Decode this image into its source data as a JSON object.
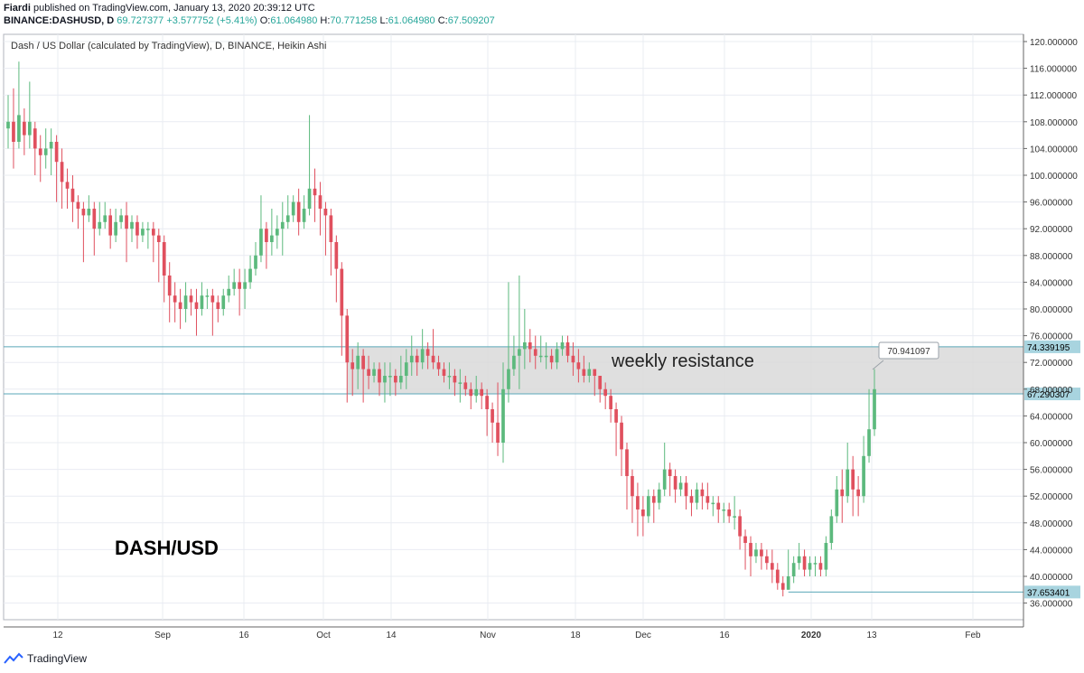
{
  "header": {
    "publisher": "Fiardi",
    "published_text": "published on TradingView.com, January 13, 2020 20:39:12 UTC",
    "symbol": "BINANCE:DASHUSD, D",
    "last": "69.727377",
    "change": "+3.577752 (+5.41%)",
    "o_label": "O:",
    "o": "61.064980",
    "h_label": "H:",
    "h": "70.771258",
    "l_label": "L:",
    "l": "61.064980",
    "c_label": "C:",
    "c": "67.509207"
  },
  "chart_title": "Dash / US Dollar (calculated by TradingView), D, BINANCE, Heikin Ashi",
  "watermark": "DASH/USD",
  "zone_label": "weekly resistance",
  "callout": "70.941097",
  "brand": "TradingView",
  "colors": {
    "up": "#26a69a",
    "up_candle": "#5cb97d",
    "down_candle": "#e0505e",
    "zone": "#d9d9d9",
    "line": "#5aa7b8",
    "label_bg": "#a8d4df"
  },
  "chart_data": {
    "type": "candlestick",
    "style": "Heikin Ashi",
    "ylim": [
      35,
      121
    ],
    "yticks": [
      "120.000000",
      "116.000000",
      "112.000000",
      "108.000000",
      "104.000000",
      "100.000000",
      "96.000000",
      "92.000000",
      "88.000000",
      "84.000000",
      "80.000000",
      "76.000000",
      "72.000000",
      "68.000000",
      "64.000000",
      "60.000000",
      "56.000000",
      "52.000000",
      "48.000000",
      "44.000000",
      "40.000000",
      "36.000000"
    ],
    "xticks": [
      "12",
      "Sep",
      "16",
      "Oct",
      "14",
      "Nov",
      "18",
      "Dec",
      "16",
      "2020",
      "13",
      "Feb"
    ],
    "price_labels": [
      {
        "value": 74.339195,
        "text": "74.339195"
      },
      {
        "value": 67.290307,
        "text": "67.290307"
      },
      {
        "value": 37.653401,
        "text": "37.653401"
      }
    ],
    "zone": {
      "low": 67.290307,
      "high": 74.339195
    },
    "callout_value": 70.941097,
    "candles": [
      [
        107,
        108,
        104,
        112
      ],
      [
        108,
        105,
        101,
        113
      ],
      [
        105,
        109,
        104,
        117
      ],
      [
        108,
        106,
        103,
        110
      ],
      [
        106,
        108,
        104,
        114
      ],
      [
        107,
        104,
        100,
        108
      ],
      [
        104,
        103,
        99,
        106
      ],
      [
        103,
        104,
        101,
        107
      ],
      [
        104,
        105,
        100,
        107
      ],
      [
        105,
        102,
        96,
        106
      ],
      [
        102,
        99,
        95,
        104
      ],
      [
        99,
        98,
        95,
        101
      ],
      [
        98,
        96,
        93,
        100
      ],
      [
        96,
        95,
        92,
        97
      ],
      [
        95,
        94,
        87,
        96
      ],
      [
        94,
        95,
        93,
        97
      ],
      [
        95,
        92,
        88,
        96
      ],
      [
        92,
        93,
        91,
        96
      ],
      [
        93,
        94,
        92,
        96
      ],
      [
        94,
        91,
        89,
        95
      ],
      [
        91,
        93,
        90,
        95
      ],
      [
        93,
        94,
        92,
        95
      ],
      [
        94,
        92,
        87,
        96
      ],
      [
        92,
        93,
        90,
        94
      ],
      [
        93,
        91,
        89,
        94
      ],
      [
        91,
        92,
        90,
        93
      ],
      [
        92,
        92,
        89,
        93
      ],
      [
        92,
        91,
        87,
        93
      ],
      [
        91,
        90,
        84,
        92
      ],
      [
        90,
        85,
        81,
        91
      ],
      [
        85,
        82,
        78,
        87
      ],
      [
        82,
        81,
        78,
        84
      ],
      [
        81,
        80,
        77,
        83
      ],
      [
        80,
        82,
        78,
        84
      ],
      [
        82,
        81,
        79,
        83
      ],
      [
        81,
        80,
        76,
        83
      ],
      [
        80,
        82,
        79,
        84
      ],
      [
        82,
        82,
        80,
        83
      ],
      [
        82,
        81,
        76,
        83
      ],
      [
        81,
        80,
        78,
        82
      ],
      [
        80,
        82,
        79,
        83
      ],
      [
        82,
        83,
        81,
        85
      ],
      [
        83,
        84,
        82,
        86
      ],
      [
        84,
        83,
        79,
        86
      ],
      [
        83,
        84,
        80,
        86
      ],
      [
        84,
        86,
        83,
        88
      ],
      [
        86,
        88,
        85,
        90
      ],
      [
        88,
        92,
        87,
        97
      ],
      [
        92,
        90,
        86,
        93
      ],
      [
        90,
        91,
        88,
        95
      ],
      [
        91,
        92,
        89,
        94
      ],
      [
        92,
        93,
        88,
        96
      ],
      [
        93,
        94,
        92,
        97
      ],
      [
        94,
        96,
        93,
        97
      ],
      [
        96,
        93,
        91,
        98
      ],
      [
        93,
        95,
        92,
        97
      ],
      [
        95,
        98,
        94,
        109
      ],
      [
        98,
        97,
        93,
        101
      ],
      [
        97,
        95,
        91,
        99
      ],
      [
        95,
        94,
        88,
        96
      ],
      [
        94,
        90,
        85,
        95
      ],
      [
        90,
        86,
        81,
        91
      ],
      [
        86,
        79,
        73,
        87
      ],
      [
        79,
        72,
        66,
        80
      ],
      [
        72,
        71,
        67,
        74
      ],
      [
        71,
        73,
        68,
        75
      ],
      [
        73,
        71,
        66,
        74
      ],
      [
        71,
        70,
        68,
        73
      ],
      [
        70,
        71,
        69,
        72
      ],
      [
        71,
        69,
        67,
        72
      ],
      [
        69,
        70,
        66,
        72
      ],
      [
        70,
        70,
        67,
        72
      ],
      [
        70,
        69,
        67,
        71
      ],
      [
        69,
        70,
        68,
        73
      ],
      [
        70,
        72,
        68,
        74
      ],
      [
        72,
        73,
        70,
        76
      ],
      [
        73,
        72,
        70,
        74
      ],
      [
        72,
        74,
        71,
        77
      ],
      [
        74,
        73,
        71,
        75
      ],
      [
        73,
        72,
        71,
        77
      ],
      [
        72,
        71,
        70,
        73
      ],
      [
        71,
        70,
        69,
        72
      ],
      [
        70,
        70,
        68,
        72
      ],
      [
        70,
        69,
        67,
        71
      ],
      [
        69,
        69,
        66,
        71
      ],
      [
        69,
        68,
        67,
        70
      ],
      [
        68,
        67,
        65,
        69
      ],
      [
        67,
        68,
        66,
        70
      ],
      [
        68,
        67,
        65,
        69
      ],
      [
        67,
        65,
        61,
        68
      ],
      [
        65,
        63,
        60,
        66
      ],
      [
        63,
        60,
        58,
        69
      ],
      [
        60,
        68,
        57,
        72
      ],
      [
        68,
        71,
        66,
        84
      ],
      [
        71,
        73,
        70,
        76
      ],
      [
        73,
        74,
        68,
        85
      ],
      [
        74,
        75,
        71,
        80
      ],
      [
        75,
        74,
        72,
        77
      ],
      [
        74,
        73,
        71,
        76
      ],
      [
        73,
        73,
        72,
        76
      ],
      [
        73,
        73,
        71,
        75
      ],
      [
        73,
        72,
        71,
        74
      ],
      [
        72,
        74,
        71,
        75
      ],
      [
        74,
        75,
        73,
        76
      ],
      [
        75,
        73,
        72,
        76
      ],
      [
        73,
        72,
        70,
        75
      ],
      [
        72,
        71,
        69,
        74
      ],
      [
        71,
        70,
        69,
        73
      ],
      [
        70,
        71,
        69,
        72
      ],
      [
        71,
        70,
        67,
        71
      ],
      [
        70,
        68,
        66,
        70
      ],
      [
        68,
        67,
        65,
        69
      ],
      [
        67,
        65,
        63,
        68
      ],
      [
        65,
        63,
        58,
        66
      ],
      [
        63,
        59,
        55,
        64
      ],
      [
        59,
        55,
        50,
        60
      ],
      [
        55,
        52,
        48,
        56
      ],
      [
        52,
        50,
        46,
        54
      ],
      [
        50,
        49,
        46,
        52
      ],
      [
        49,
        52,
        48,
        53
      ],
      [
        52,
        51,
        48,
        53
      ],
      [
        51,
        53,
        50,
        54
      ],
      [
        53,
        56,
        52,
        60
      ],
      [
        56,
        55,
        52,
        57
      ],
      [
        55,
        53,
        51,
        56
      ],
      [
        53,
        54,
        52,
        55
      ],
      [
        54,
        52,
        50,
        55
      ],
      [
        52,
        51,
        49,
        53
      ],
      [
        51,
        53,
        50,
        54
      ],
      [
        53,
        52,
        50,
        54
      ],
      [
        52,
        51,
        50,
        54
      ],
      [
        51,
        51,
        49,
        52
      ],
      [
        51,
        50,
        48,
        52
      ],
      [
        50,
        50,
        48,
        51
      ],
      [
        50,
        49,
        48,
        51
      ],
      [
        49,
        49,
        47,
        52
      ],
      [
        49,
        46,
        44,
        50
      ],
      [
        46,
        45,
        41,
        47
      ],
      [
        45,
        43,
        40,
        46
      ],
      [
        43,
        44,
        42,
        45
      ],
      [
        44,
        43,
        41,
        45
      ],
      [
        43,
        42,
        41,
        44
      ],
      [
        42,
        41,
        39,
        44
      ],
      [
        41,
        39,
        38,
        42
      ],
      [
        39,
        38,
        37,
        40
      ],
      [
        38,
        40,
        38,
        44
      ],
      [
        40,
        42,
        39,
        43
      ],
      [
        42,
        43,
        41,
        45
      ],
      [
        43,
        41,
        40,
        44
      ],
      [
        41,
        42,
        40,
        43
      ],
      [
        42,
        42,
        40,
        43
      ],
      [
        42,
        41,
        40,
        43
      ],
      [
        41,
        45,
        40,
        46
      ],
      [
        45,
        49,
        44,
        50
      ],
      [
        49,
        53,
        48,
        55
      ],
      [
        53,
        52,
        48,
        56
      ],
      [
        52,
        56,
        51,
        60
      ],
      [
        56,
        53,
        49,
        58
      ],
      [
        53,
        52,
        49,
        55
      ],
      [
        52,
        58,
        51,
        61
      ],
      [
        58,
        62,
        57,
        68
      ],
      [
        62,
        68,
        61,
        71
      ]
    ]
  }
}
